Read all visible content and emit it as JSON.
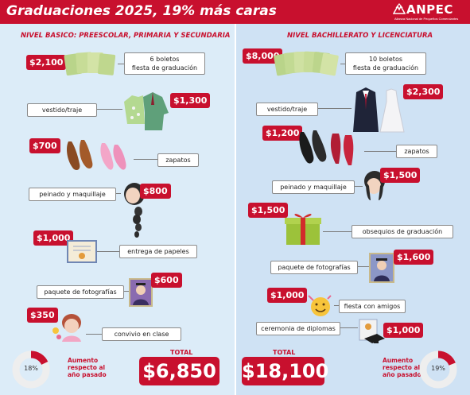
{
  "header": {
    "title": "Graduaciones 2025, 19% más caras",
    "logo_text": "ANPEC",
    "logo_subtitle": "Alianza Nacional de Pequeños Comerciantes"
  },
  "colors": {
    "brand": "#c8102e",
    "left_panel": "#dcecf8",
    "right_panel": "#cfe2f4"
  },
  "basic": {
    "section_title": "NIVEL BASICO: PREESCOLAR, PRIMARIA Y SECUNDARIA",
    "items": [
      {
        "price": "$2,100",
        "label": "6 boletos\nfiesta de graduación",
        "icon": "tickets-icon"
      },
      {
        "price": "$1,300",
        "label": "vestido/traje",
        "icon": "clothes-icon"
      },
      {
        "price": "$700",
        "label": "zapatos",
        "icon": "shoes-icon"
      },
      {
        "price": "$800",
        "label": "peinado y maquillaje",
        "icon": "hairstyle-icon"
      },
      {
        "price": "$1,000",
        "label": "entrega de papeles",
        "icon": "diploma-icon"
      },
      {
        "price": "$600",
        "label": "paquete de fotografías",
        "icon": "photo-icon"
      },
      {
        "price": "$350",
        "label": "convivio en clase",
        "icon": "party-girl-icon"
      }
    ],
    "total_caption": "TOTAL",
    "total": "$6,850",
    "increase_percent": "18%",
    "increase_value": 18,
    "increase_text": "Aumento\nrespecto al\naño pasado"
  },
  "higher": {
    "section_title": "NIVEL BACHILLERATO Y LICENCIATURA",
    "items": [
      {
        "price": "$8,000",
        "label": "10 boletos\nfiesta de graduación",
        "icon": "tickets-icon"
      },
      {
        "price": "$2,300",
        "label": "vestido/traje",
        "icon": "suit-dress-icon"
      },
      {
        "price": "$1,200",
        "label": "zapatos",
        "icon": "shoes-icon"
      },
      {
        "price": "$1,500",
        "label": "peinado y maquillaje",
        "icon": "hairstyle-icon"
      },
      {
        "price": "$1,500",
        "label": "obsequios de graduación",
        "icon": "gift-icon"
      },
      {
        "price": "$1,600",
        "label": "paquete de fotografías",
        "icon": "photo-icon"
      },
      {
        "price": "$1,000",
        "label": "fiesta con amigos",
        "icon": "party-emoji-icon"
      },
      {
        "price": "$1,000",
        "label": "ceremonia de diplomas",
        "icon": "diploma-cap-icon"
      }
    ],
    "total_caption": "TOTAL",
    "total": "$18,100",
    "increase_percent": "19%",
    "increase_value": 19,
    "increase_text": "Aumento\nrespecto al\naño pasado"
  }
}
